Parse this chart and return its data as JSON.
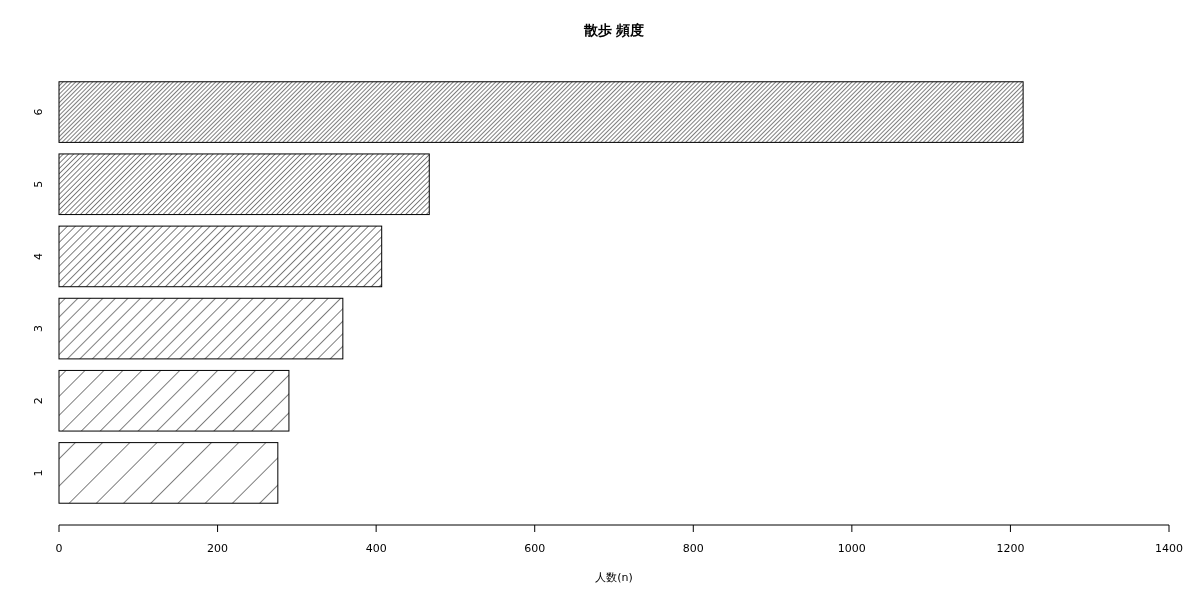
{
  "chart_data": {
    "type": "bar",
    "orientation": "horizontal",
    "title": "散歩 頻度",
    "xlabel": "人数(n)",
    "categories": [
      "6",
      "5",
      "4",
      "3",
      "2",
      "1"
    ],
    "values": [
      1216,
      467,
      407,
      358,
      290,
      276
    ],
    "color": "#000000",
    "xlim": [
      0,
      1400
    ],
    "xticks": [
      0,
      200,
      400,
      600,
      800,
      1000,
      1200,
      1400
    ],
    "grid": false
  }
}
